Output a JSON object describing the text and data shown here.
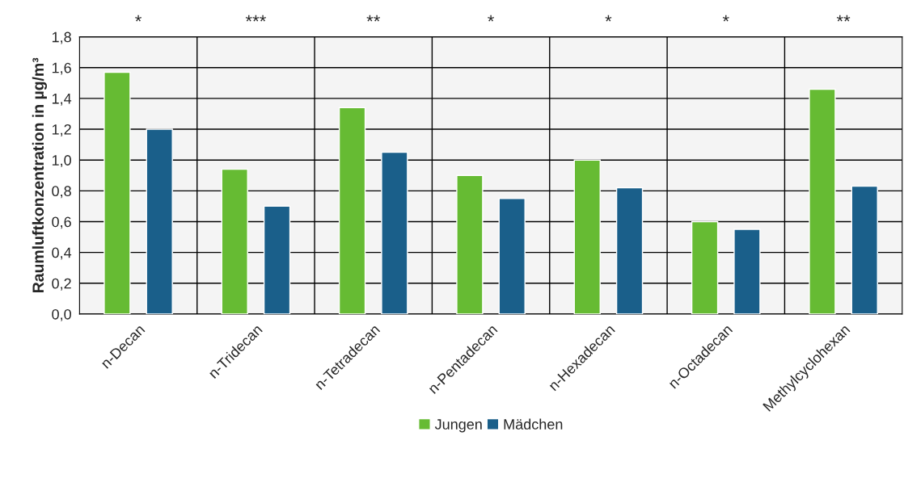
{
  "chart_data": {
    "type": "bar",
    "ylabel": "Raumluftkonzentration in µg/m³",
    "categories": [
      "n-Decan",
      "n-Tridecan",
      "n-Tetradecan",
      "n-Pentadecan",
      "n-Hexadecan",
      "n-Octadecan",
      "Methylcyclohexan"
    ],
    "series": [
      {
        "name": "Jungen",
        "color": "#66bb33",
        "values": [
          1.57,
          0.94,
          1.34,
          0.9,
          1.0,
          0.6,
          1.46
        ]
      },
      {
        "name": "Mädchen",
        "color": "#1a5f8a",
        "values": [
          1.2,
          0.7,
          1.05,
          0.75,
          0.82,
          0.55,
          0.83
        ]
      }
    ],
    "ylim": [
      0,
      1.8
    ],
    "yticks": [
      {
        "value": 0,
        "label": "0,0"
      },
      {
        "value": 0.2,
        "label": "0,2"
      },
      {
        "value": 0.4,
        "label": "0,4"
      },
      {
        "value": 0.6,
        "label": "0,6"
      },
      {
        "value": 0.8,
        "label": "0,8"
      },
      {
        "value": 1.0,
        "label": "1,0"
      },
      {
        "value": 1.2,
        "label": "1,2"
      },
      {
        "value": 1.4,
        "label": "1,4"
      },
      {
        "value": 1.6,
        "label": "1,6"
      },
      {
        "value": 1.8,
        "label": "1,8"
      }
    ],
    "annotations": [
      "*",
      "***",
      "**",
      "*",
      "*",
      "*",
      "**"
    ],
    "grid": true,
    "legend": "bottom"
  }
}
